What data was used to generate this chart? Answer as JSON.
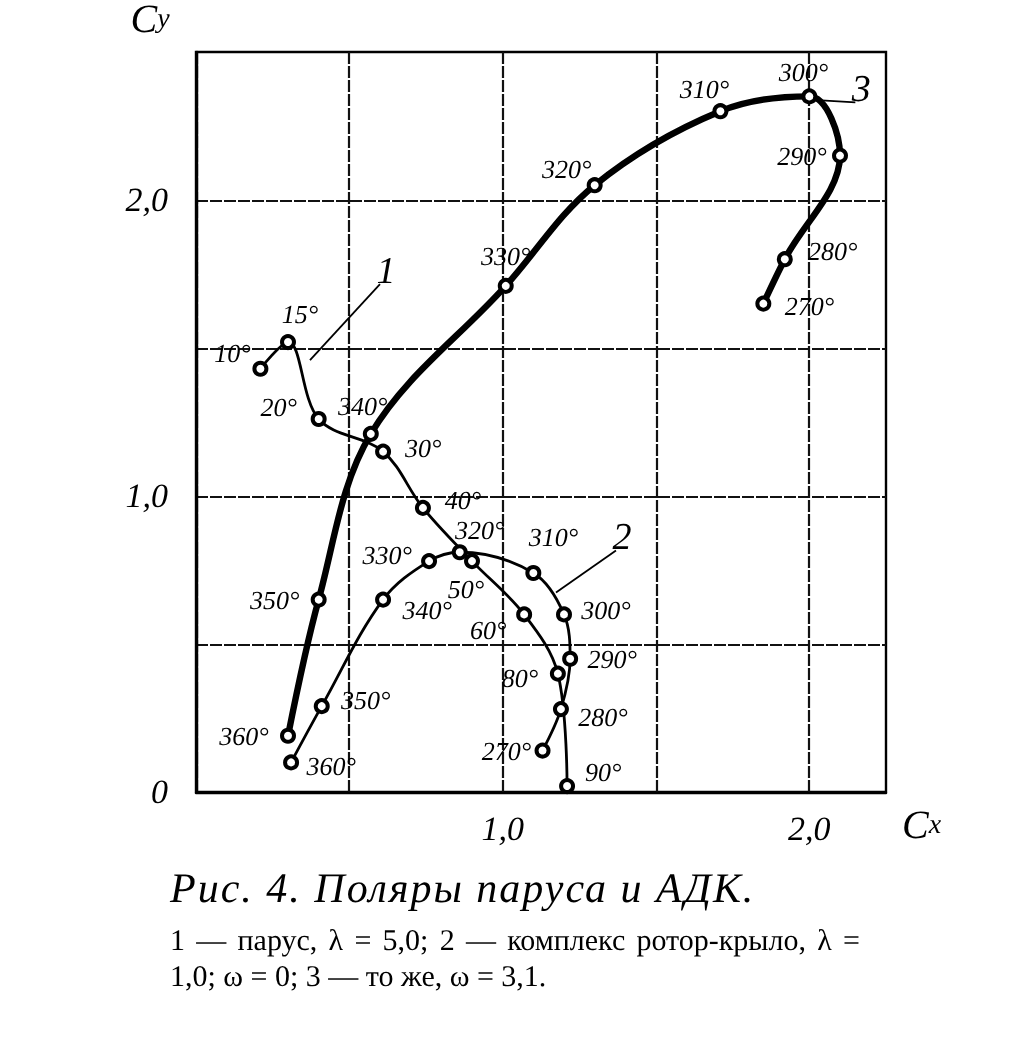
{
  "chart_data": {
    "type": "line",
    "title": "Рис. 4. Поляры паруса и АДК.",
    "xlabel": "C$_{x}$",
    "ylabel": "C$_{y}$",
    "xlim": [
      0,
      2.25
    ],
    "ylim": [
      0,
      2.5
    ],
    "xticks": [
      {
        "value": 0,
        "label": null
      },
      {
        "value": 0.5,
        "label": null
      },
      {
        "value": 1,
        "label": "1,0"
      },
      {
        "value": 1.5,
        "label": null
      },
      {
        "value": 2,
        "label": "2,0"
      }
    ],
    "yticks": [
      {
        "value": 0,
        "label": "0"
      },
      {
        "value": 0.5,
        "label": null
      },
      {
        "value": 1,
        "label": "1,0"
      },
      {
        "value": 1.5,
        "label": null
      },
      {
        "value": 2,
        "label": "2,0"
      }
    ],
    "grid": true,
    "marker": "circle",
    "line_style": "solid",
    "series": [
      {
        "name": "1",
        "color": "#000000",
        "x": [
          0.21,
          0.3,
          0.4,
          0.61,
          0.74,
          0.9,
          1.07,
          1.18,
          1.21
        ],
        "values": [
          1.43,
          1.52,
          1.26,
          1.15,
          0.96,
          0.78,
          0.6,
          0.4,
          0.02
        ]
      },
      {
        "name": "2",
        "color": "#000000",
        "x": [
          0.31,
          0.41,
          0.61,
          0.76,
          0.86,
          1.1,
          1.2,
          1.22,
          1.19,
          1.13
        ],
        "values": [
          0.1,
          0.29,
          0.65,
          0.78,
          0.81,
          0.74,
          0.6,
          0.45,
          0.28,
          0.14
        ]
      },
      {
        "name": "3",
        "color": "#000000",
        "x": [
          0.3,
          0.4,
          0.57,
          1.01,
          1.3,
          1.71,
          2.0,
          2.1,
          1.92,
          1.85
        ],
        "values": [
          0.19,
          0.65,
          1.21,
          1.71,
          2.05,
          2.3,
          2.35,
          2.15,
          1.8,
          1.65
        ]
      }
    ],
    "annotations": [
      {
        "text": "10°",
        "x": 0.21,
        "y": 1.43
      },
      {
        "text": "15°",
        "x": 0.3,
        "y": 1.52
      },
      {
        "text": "20°",
        "x": 0.4,
        "y": 1.26
      },
      {
        "text": "30°",
        "x": 0.61,
        "y": 1.15
      },
      {
        "text": "40°",
        "x": 0.74,
        "y": 0.96
      },
      {
        "text": "50°",
        "x": 0.9,
        "y": 0.78
      },
      {
        "text": "60°",
        "x": 1.07,
        "y": 0.6
      },
      {
        "text": "80°",
        "x": 1.18,
        "y": 0.4
      },
      {
        "text": "90°",
        "x": 1.21,
        "y": 0.02
      },
      {
        "text": "360°",
        "x": 0.31,
        "y": 0.1
      },
      {
        "text": "350°",
        "x": 0.41,
        "y": 0.29
      },
      {
        "text": "340°",
        "x": 0.61,
        "y": 0.65
      },
      {
        "text": "330°",
        "x": 0.76,
        "y": 0.78
      },
      {
        "text": "320°",
        "x": 0.86,
        "y": 0.81
      },
      {
        "text": "310°",
        "x": 1.1,
        "y": 0.74
      },
      {
        "text": "300°",
        "x": 1.2,
        "y": 0.6
      },
      {
        "text": "290°",
        "x": 1.22,
        "y": 0.45
      },
      {
        "text": "280°",
        "x": 1.19,
        "y": 0.28
      },
      {
        "text": "270°",
        "x": 1.13,
        "y": 0.14
      },
      {
        "text": "360°",
        "x": 0.3,
        "y": 0.19
      },
      {
        "text": "350°",
        "x": 0.4,
        "y": 0.65
      },
      {
        "text": "340°",
        "x": 0.57,
        "y": 1.21
      },
      {
        "text": "330°",
        "x": 1.01,
        "y": 1.71
      },
      {
        "text": "320°",
        "x": 1.3,
        "y": 2.05
      },
      {
        "text": "310°",
        "x": 1.71,
        "y": 2.3
      },
      {
        "text": "300°",
        "x": 2.0,
        "y": 2.35
      },
      {
        "text": "290°",
        "x": 2.1,
        "y": 2.15
      },
      {
        "text": "280°",
        "x": 1.92,
        "y": 1.8
      },
      {
        "text": "270°",
        "x": 1.85,
        "y": 1.65
      },
      "1 — парус, λ = 5,0; 2 — комплекс ротор-крыло, λ = 1,0; ω = 0; 3 — то же, ω = 3,1."
    ]
  }
}
